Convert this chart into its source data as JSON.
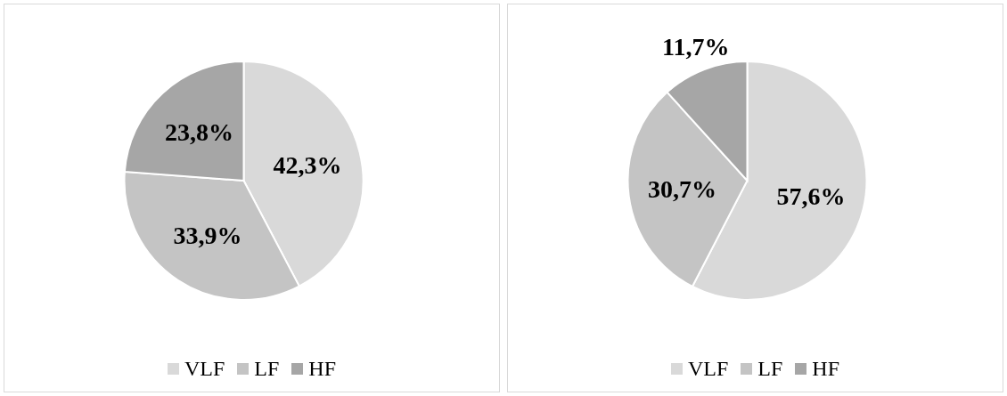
{
  "chart_data": [
    {
      "type": "pie",
      "categories": [
        "VLF",
        "LF",
        "HF"
      ],
      "values": [
        42.3,
        33.9,
        23.8
      ],
      "colors": [
        "#d9d9d9",
        "#c4c4c4",
        "#a6a6a6"
      ],
      "value_labels": [
        "42,3%",
        "33,9%",
        "23,8%"
      ],
      "legend": "bottom"
    },
    {
      "type": "pie",
      "categories": [
        "VLF",
        "LF",
        "HF"
      ],
      "values": [
        57.6,
        30.7,
        11.7
      ],
      "colors": [
        "#d9d9d9",
        "#c4c4c4",
        "#a6a6a6"
      ],
      "value_labels": [
        "57,6%",
        "30,7%",
        "11,7%"
      ],
      "legend": "bottom"
    }
  ]
}
